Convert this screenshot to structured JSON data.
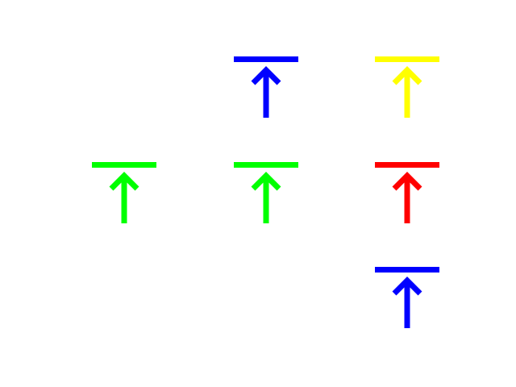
{
  "icons": [
    {
      "name": "arrow-up-to-line-icon",
      "color": "#0000ff"
    },
    {
      "name": "arrow-up-to-line-icon",
      "color": "#ffff00"
    },
    {
      "name": "arrow-up-to-line-icon",
      "color": "#00ff00"
    },
    {
      "name": "arrow-up-to-line-icon",
      "color": "#00ff00"
    },
    {
      "name": "arrow-up-to-line-icon",
      "color": "#ff0000"
    },
    {
      "name": "arrow-up-to-line-icon",
      "color": "#0000ff"
    }
  ]
}
